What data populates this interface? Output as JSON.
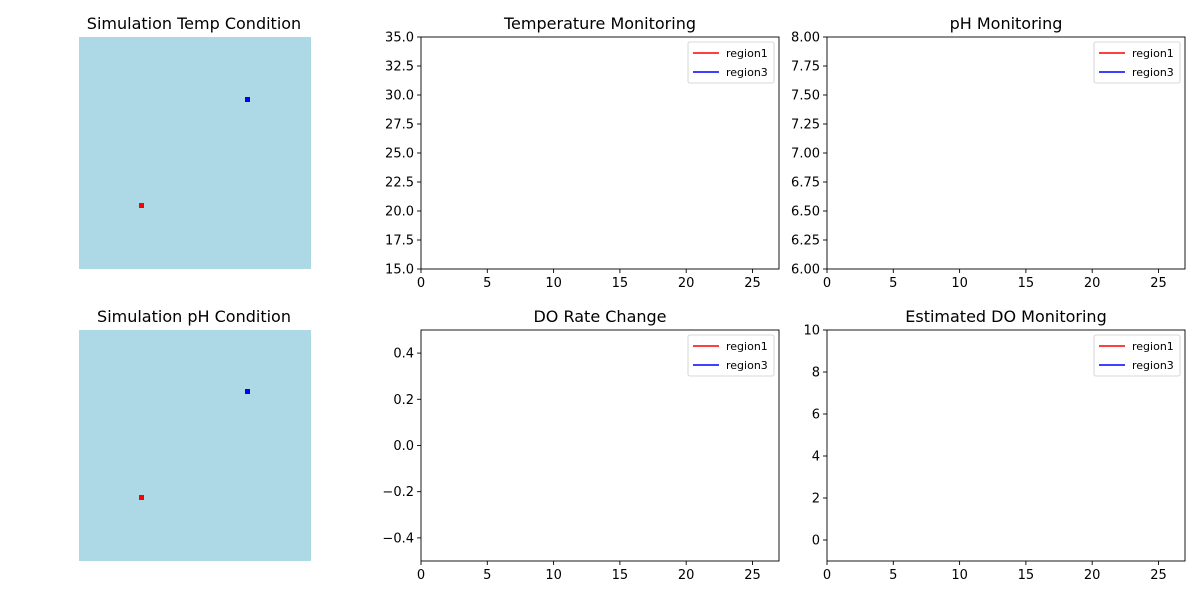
{
  "figure": {
    "background": "#ffffff"
  },
  "maps": [
    {
      "title": "Simulation Temp Condition",
      "background_color": "#add8e6",
      "markers": [
        {
          "color": "#ff0000",
          "label": "region1"
        },
        {
          "color": "#0000ff",
          "label": "region3"
        }
      ]
    },
    {
      "title": "Simulation pH Condition",
      "background_color": "#add8e6",
      "markers": [
        {
          "color": "#ff0000",
          "label": "region1"
        },
        {
          "color": "#0000ff",
          "label": "region3"
        }
      ]
    }
  ],
  "chart_data": [
    {
      "type": "line",
      "title": "Temperature Monitoring",
      "xlabel": "",
      "ylabel": "",
      "xlim": [
        0,
        27
      ],
      "ylim": [
        15,
        35
      ],
      "xticks": [
        0,
        5,
        10,
        15,
        20,
        25
      ],
      "xtick_labels": [
        "0",
        "5",
        "10",
        "15",
        "20",
        "25"
      ],
      "yticks": [
        15,
        17.5,
        20,
        22.5,
        25,
        27.5,
        30,
        32.5,
        35
      ],
      "ytick_labels": [
        "15.0",
        "17.5",
        "20.0",
        "22.5",
        "25.0",
        "27.5",
        "30.0",
        "32.5",
        "35.0"
      ],
      "legend_position": "upper right",
      "grid": false,
      "series": [
        {
          "name": "region1",
          "color": "#ff0000",
          "x": [],
          "y": []
        },
        {
          "name": "region3",
          "color": "#0000ff",
          "x": [],
          "y": []
        }
      ]
    },
    {
      "type": "line",
      "title": "pH Monitoring",
      "xlabel": "",
      "ylabel": "",
      "xlim": [
        0,
        27
      ],
      "ylim": [
        6,
        8
      ],
      "xticks": [
        0,
        5,
        10,
        15,
        20,
        25
      ],
      "xtick_labels": [
        "0",
        "5",
        "10",
        "15",
        "20",
        "25"
      ],
      "yticks": [
        6,
        6.25,
        6.5,
        6.75,
        7,
        7.25,
        7.5,
        7.75,
        8
      ],
      "ytick_labels": [
        "6.00",
        "6.25",
        "6.50",
        "6.75",
        "7.00",
        "7.25",
        "7.50",
        "7.75",
        "8.00"
      ],
      "legend_position": "upper right",
      "grid": false,
      "series": [
        {
          "name": "region1",
          "color": "#ff0000",
          "x": [],
          "y": []
        },
        {
          "name": "region3",
          "color": "#0000ff",
          "x": [],
          "y": []
        }
      ]
    },
    {
      "type": "line",
      "title": "DO Rate Change",
      "xlabel": "",
      "ylabel": "",
      "xlim": [
        0,
        27
      ],
      "ylim": [
        -0.5,
        0.5
      ],
      "xticks": [
        0,
        5,
        10,
        15,
        20,
        25
      ],
      "xtick_labels": [
        "0",
        "5",
        "10",
        "15",
        "20",
        "25"
      ],
      "yticks": [
        -0.4,
        -0.2,
        0,
        0.2,
        0.4
      ],
      "ytick_labels": [
        "−0.4",
        "−0.2",
        "0.0",
        "0.2",
        "0.4"
      ],
      "legend_position": "upper right",
      "grid": false,
      "series": [
        {
          "name": "region1",
          "color": "#ff0000",
          "x": [],
          "y": []
        },
        {
          "name": "region3",
          "color": "#0000ff",
          "x": [],
          "y": []
        }
      ]
    },
    {
      "type": "line",
      "title": "Estimated DO Monitoring",
      "xlabel": "",
      "ylabel": "",
      "xlim": [
        0,
        27
      ],
      "ylim": [
        -1,
        10
      ],
      "xticks": [
        0,
        5,
        10,
        15,
        20,
        25
      ],
      "xtick_labels": [
        "0",
        "5",
        "10",
        "15",
        "20",
        "25"
      ],
      "yticks": [
        0,
        2,
        4,
        6,
        8,
        10
      ],
      "ytick_labels": [
        "0",
        "2",
        "4",
        "6",
        "8",
        "10"
      ],
      "legend_position": "upper right",
      "grid": false,
      "series": [
        {
          "name": "region1",
          "color": "#ff0000",
          "x": [],
          "y": []
        },
        {
          "name": "region3",
          "color": "#0000ff",
          "x": [],
          "y": []
        }
      ]
    }
  ]
}
